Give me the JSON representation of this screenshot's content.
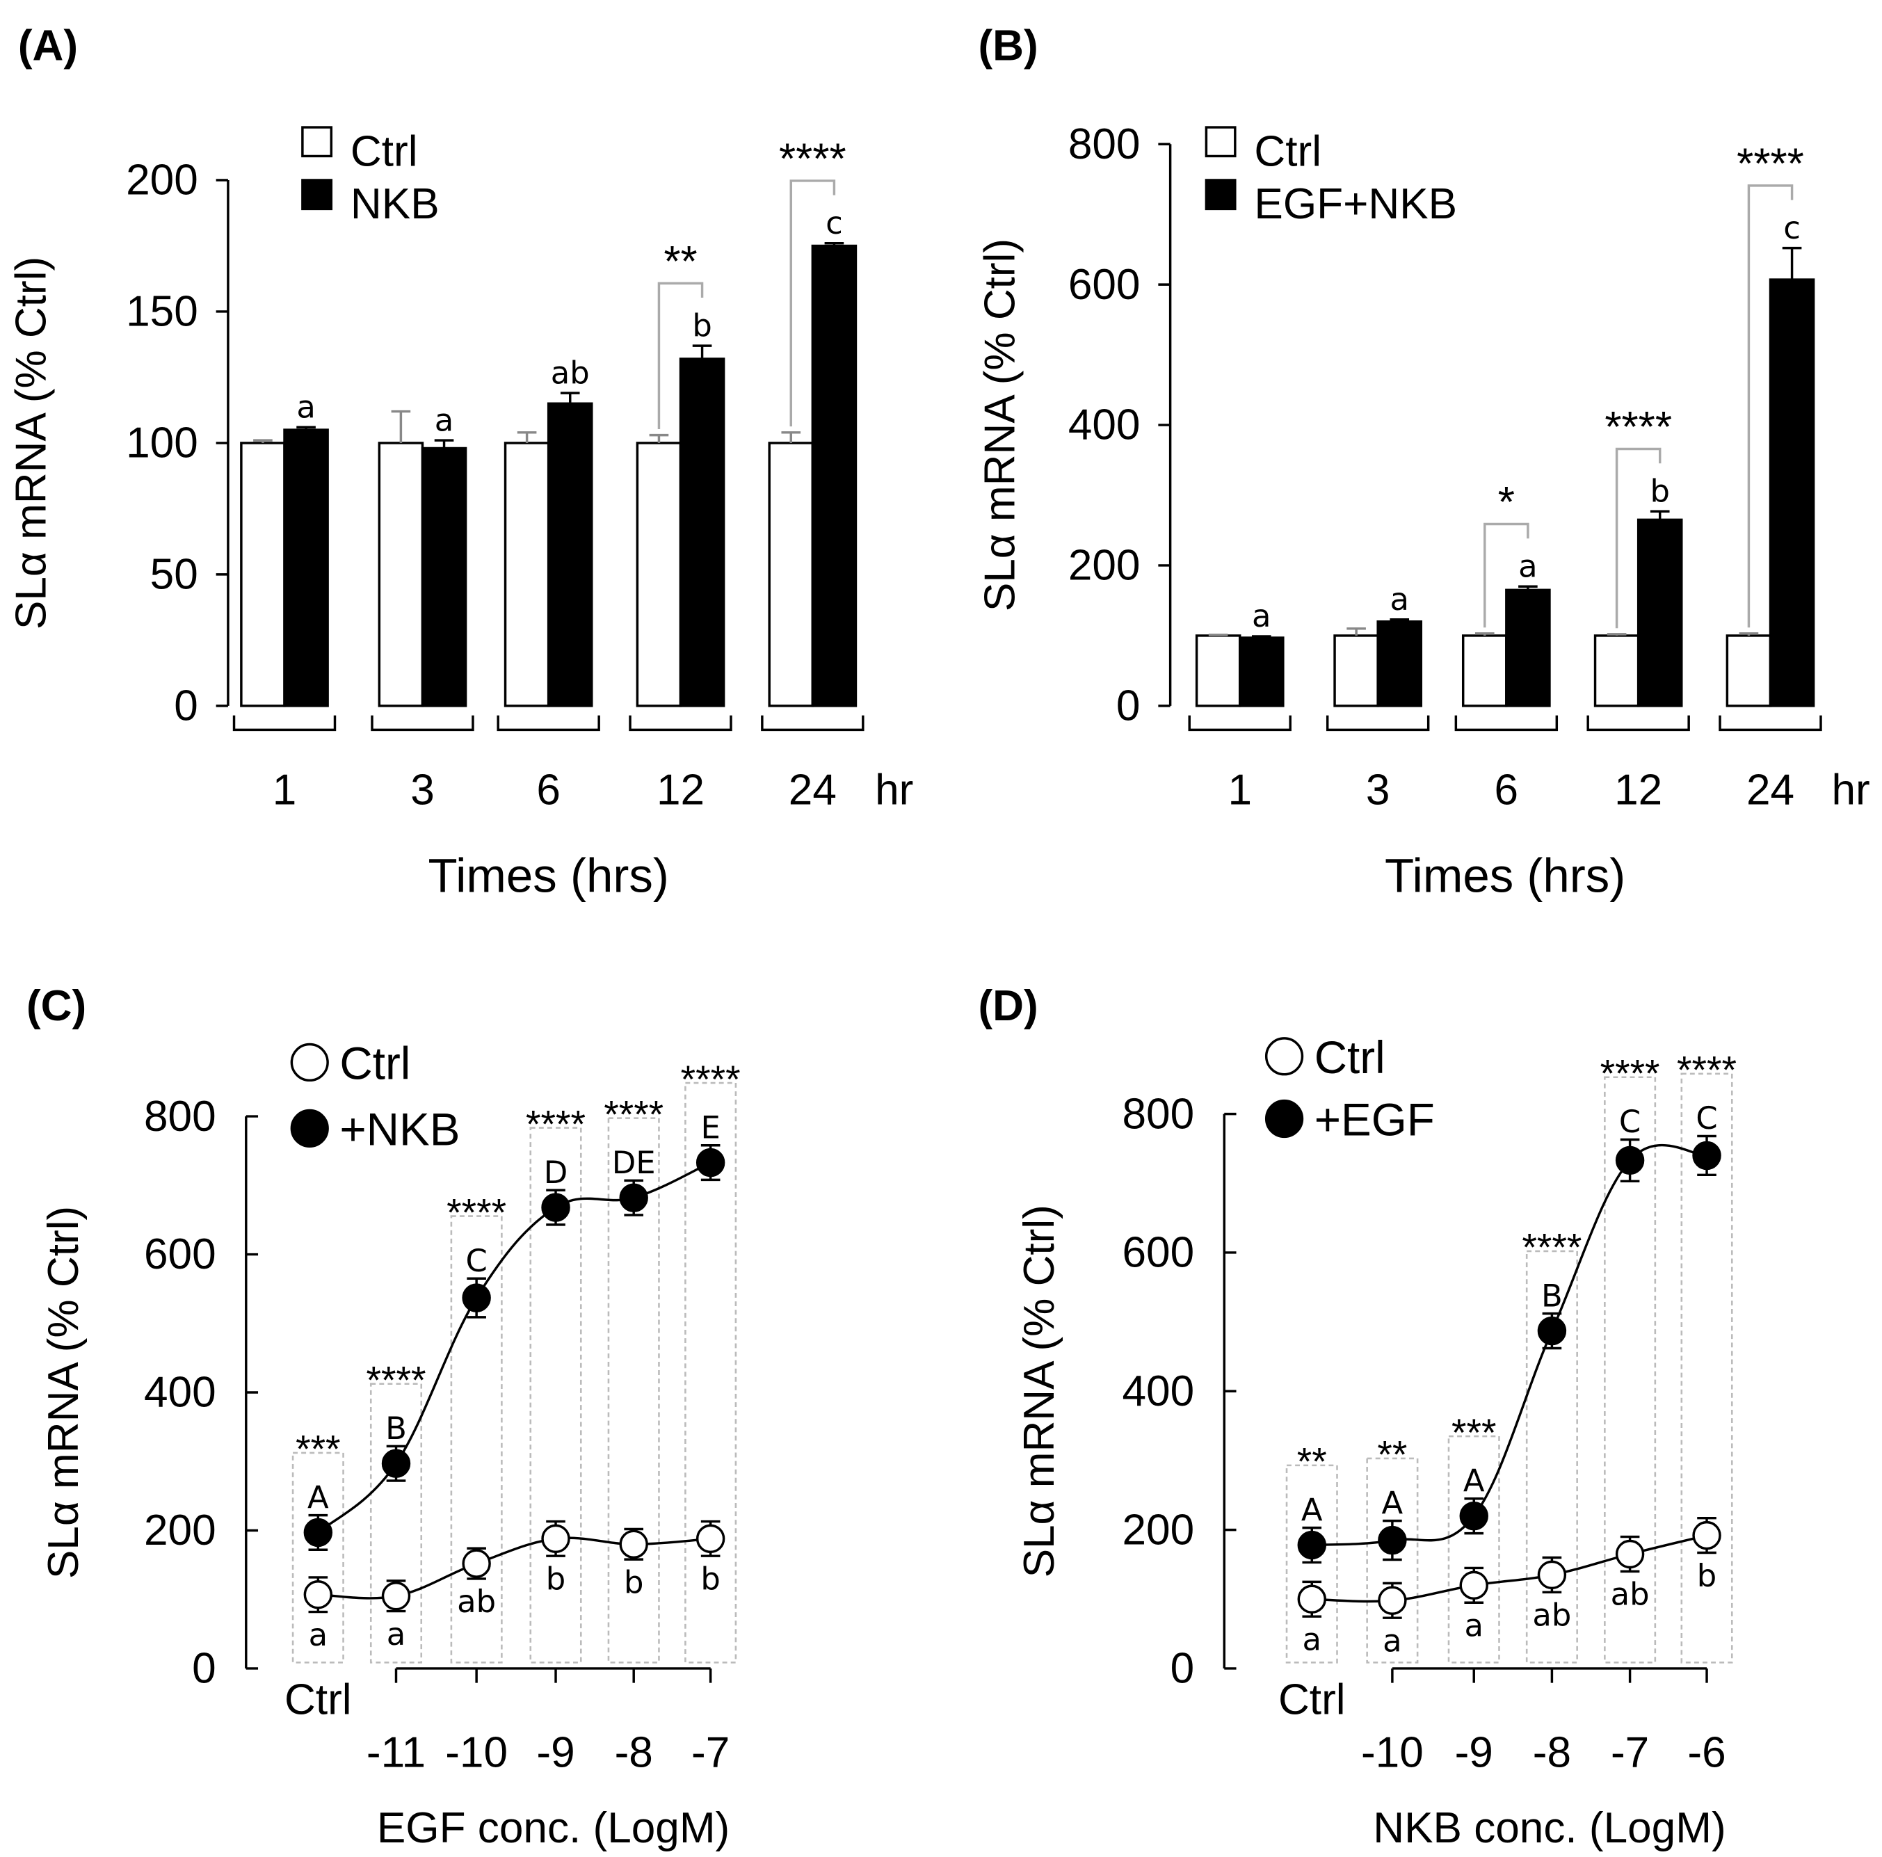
{
  "chart_data": [
    {
      "type": "bar",
      "panel_label": "(A)",
      "ylabel": "SLα mRNA (% Ctrl)",
      "xlabel": "Times (hrs)",
      "unit": "hr",
      "categories": [
        "1",
        "3",
        "6",
        "12",
        "24"
      ],
      "ylim": [
        0,
        200
      ],
      "yticks": [
        "0",
        "50",
        "100",
        "150",
        "200"
      ],
      "legend": [
        "Ctrl",
        "NKB"
      ],
      "series": [
        {
          "name": "Ctrl",
          "values": [
            100,
            100,
            100,
            100,
            100
          ],
          "errors": [
            1,
            12,
            4,
            3,
            4
          ]
        },
        {
          "name": "NKB",
          "values": [
            105,
            98,
            115,
            132,
            175
          ],
          "errors": [
            1,
            3,
            4,
            5,
            1
          ]
        }
      ],
      "letters": [
        "a",
        "a",
        "ab",
        "b",
        "c"
      ],
      "significance": [
        "",
        "",
        "",
        "**",
        "****"
      ]
    },
    {
      "type": "bar",
      "panel_label": "(B)",
      "ylabel": "SLα mRNA (% Ctrl)",
      "xlabel": "Times (hrs)",
      "unit": "hr",
      "categories": [
        "1",
        "3",
        "6",
        "12",
        "24"
      ],
      "ylim": [
        0,
        800
      ],
      "yticks": [
        "0",
        "200",
        "400",
        "600",
        "800"
      ],
      "legend": [
        "Ctrl",
        "EGF+NKB"
      ],
      "series": [
        {
          "name": "Ctrl",
          "values": [
            100,
            100,
            100,
            100,
            100
          ],
          "errors": [
            1,
            10,
            3,
            2,
            3
          ]
        },
        {
          "name": "EGF+NKB",
          "values": [
            97,
            120,
            165,
            265,
            607
          ],
          "errors": [
            2,
            3,
            5,
            12,
            45
          ]
        }
      ],
      "letters": [
        "a",
        "a",
        "a",
        "b",
        "c"
      ],
      "significance": [
        "",
        "",
        "*",
        "****",
        "****"
      ]
    },
    {
      "type": "line",
      "panel_label": "(C)",
      "ylabel": "SLα mRNA (% Ctrl)",
      "xlabel": "EGF conc. (LogM)",
      "categories": [
        "Ctrl",
        "-11",
        "-10",
        "-9",
        "-8",
        "-7"
      ],
      "ylim": [
        0,
        800
      ],
      "yticks": [
        "0",
        "200",
        "400",
        "600",
        "800"
      ],
      "legend": [
        "Ctrl",
        "+NKB"
      ],
      "series": [
        {
          "name": "Ctrl",
          "values": [
            107,
            105,
            152,
            188,
            180,
            188
          ],
          "errors": [
            25,
            22,
            22,
            25,
            22,
            25
          ]
        },
        {
          "name": "+NKB",
          "values": [
            197,
            297,
            537,
            668,
            682,
            733
          ],
          "errors": [
            25,
            25,
            28,
            25,
            25,
            25
          ]
        }
      ],
      "lower_letters": [
        "a",
        "a",
        "ab",
        "b",
        "b",
        "b"
      ],
      "upper_letters": [
        "A",
        "B",
        "C",
        "D",
        "DE",
        "E"
      ],
      "significance": [
        "***",
        "****",
        "****",
        "****",
        "****",
        "****"
      ]
    },
    {
      "type": "line",
      "panel_label": "(D)",
      "ylabel": "SLα mRNA (% Ctrl)",
      "xlabel": "NKB conc. (LogM)",
      "categories": [
        "Ctrl",
        "-10",
        "-9",
        "-8",
        "-7",
        "-6"
      ],
      "ylim": [
        0,
        800
      ],
      "yticks": [
        "0",
        "200",
        "400",
        "600",
        "800"
      ],
      "legend": [
        "Ctrl",
        "+EGF"
      ],
      "series": [
        {
          "name": "Ctrl",
          "values": [
            100,
            98,
            120,
            135,
            165,
            192
          ],
          "errors": [
            25,
            25,
            25,
            25,
            25,
            25
          ]
        },
        {
          "name": "+EGF",
          "values": [
            178,
            185,
            220,
            487,
            733,
            740
          ],
          "errors": [
            25,
            28,
            25,
            25,
            30,
            28
          ]
        }
      ],
      "lower_letters": [
        "a",
        "a",
        "a",
        "ab",
        "ab",
        "b"
      ],
      "upper_letters": [
        "A",
        "A",
        "A",
        "B",
        "C",
        "C"
      ],
      "significance": [
        "**",
        "**",
        "***",
        "****",
        "****",
        "****"
      ]
    }
  ]
}
